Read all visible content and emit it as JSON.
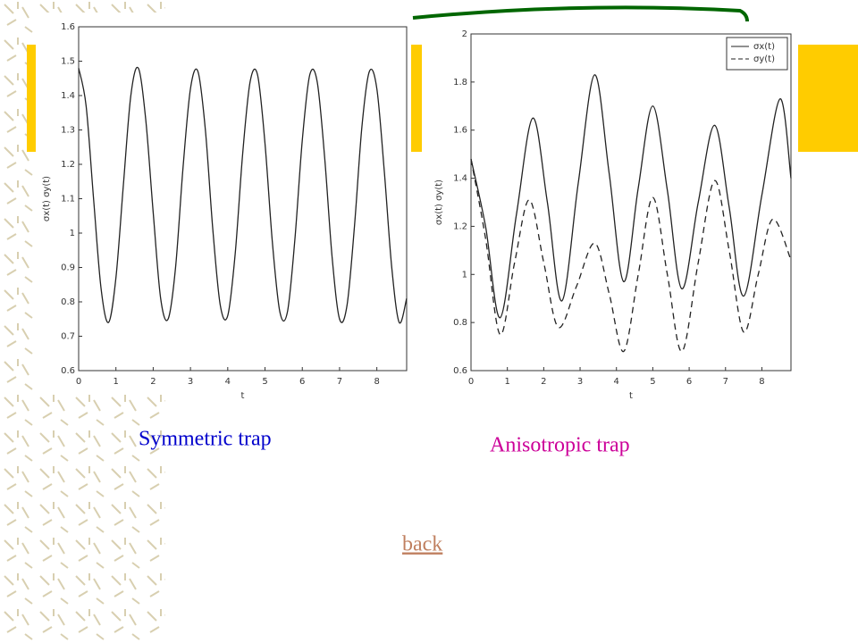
{
  "chart_data": [
    {
      "type": "line",
      "xlabel": "t",
      "ylabel": "σx(t) σy(t)",
      "xlim": [
        0,
        8.8
      ],
      "ylim": [
        0.6,
        1.6
      ],
      "xticks": [
        0,
        1,
        2,
        3,
        4,
        5,
        6,
        7,
        8
      ],
      "yticks": [
        0.6,
        0.7,
        0.8,
        0.9,
        1,
        1.1,
        1.2,
        1.3,
        1.4,
        1.5,
        1.6
      ],
      "series": [
        {
          "color": "#222",
          "dashed": false,
          "x": [
            0,
            0.2,
            0.4,
            0.6,
            0.8,
            1,
            1.2,
            1.4,
            1.6,
            1.8,
            2,
            2.2,
            2.4,
            2.6,
            2.8,
            3,
            3.2,
            3.4,
            3.6,
            3.8,
            4,
            4.2,
            4.4,
            4.6,
            4.8,
            5,
            5.2,
            5.4,
            5.6,
            5.8,
            6,
            6.2,
            6.4,
            6.6,
            6.8,
            7,
            7.2,
            7.4,
            7.6,
            7.8,
            8,
            8.2,
            8.4,
            8.6,
            8.8
          ],
          "values": [
            1.48,
            1.37,
            1.1,
            0.84,
            0.74,
            0.87,
            1.14,
            1.4,
            1.48,
            1.33,
            1.06,
            0.81,
            0.75,
            0.9,
            1.19,
            1.42,
            1.47,
            1.3,
            1.01,
            0.79,
            0.76,
            0.94,
            1.23,
            1.44,
            1.46,
            1.26,
            0.97,
            0.77,
            0.77,
            0.98,
            1.27,
            1.46,
            1.44,
            1.22,
            0.93,
            0.75,
            0.79,
            1.02,
            1.31,
            1.47,
            1.42,
            1.18,
            0.9,
            0.74,
            0.81
          ]
        }
      ]
    },
    {
      "type": "line",
      "xlabel": "t",
      "ylabel": "σx(t) σy(t)",
      "xlim": [
        0,
        8.8
      ],
      "ylim": [
        0.6,
        2
      ],
      "xticks": [
        0,
        1,
        2,
        3,
        4,
        5,
        6,
        7,
        8
      ],
      "yticks": [
        0.6,
        0.8,
        1,
        1.2,
        1.4,
        1.6,
        1.8,
        2
      ],
      "legend": "upper right",
      "series": [
        {
          "name": "σx(t)",
          "color": "#222",
          "dashed": false,
          "x": [
            0,
            0.4,
            0.8,
            1.25,
            1.7,
            2.1,
            2.5,
            2.95,
            3.4,
            3.8,
            4.2,
            4.6,
            5.0,
            5.4,
            5.8,
            6.25,
            6.7,
            7.1,
            7.5,
            8.0,
            8.5,
            8.8
          ],
          "values": [
            1.48,
            1.2,
            0.82,
            1.25,
            1.65,
            1.3,
            0.89,
            1.38,
            1.83,
            1.42,
            0.97,
            1.36,
            1.7,
            1.35,
            0.94,
            1.3,
            1.62,
            1.28,
            0.91,
            1.33,
            1.73,
            1.4
          ]
        },
        {
          "name": "σy(t)",
          "color": "#222",
          "dashed": true,
          "x": [
            0,
            0.4,
            0.8,
            1.2,
            1.6,
            2.0,
            2.4,
            2.9,
            3.4,
            3.8,
            4.2,
            4.6,
            5.0,
            5.4,
            5.8,
            6.25,
            6.7,
            7.1,
            7.5,
            7.9,
            8.3,
            8.8
          ],
          "values": [
            1.48,
            1.15,
            0.75,
            1.05,
            1.31,
            1.05,
            0.78,
            0.95,
            1.13,
            0.92,
            0.68,
            1.0,
            1.32,
            1.0,
            0.68,
            1.05,
            1.39,
            1.1,
            0.76,
            1.0,
            1.23,
            1.06
          ]
        }
      ]
    }
  ],
  "captions": [
    "Symmetric trap",
    "Anisotropic trap"
  ],
  "link": "back"
}
